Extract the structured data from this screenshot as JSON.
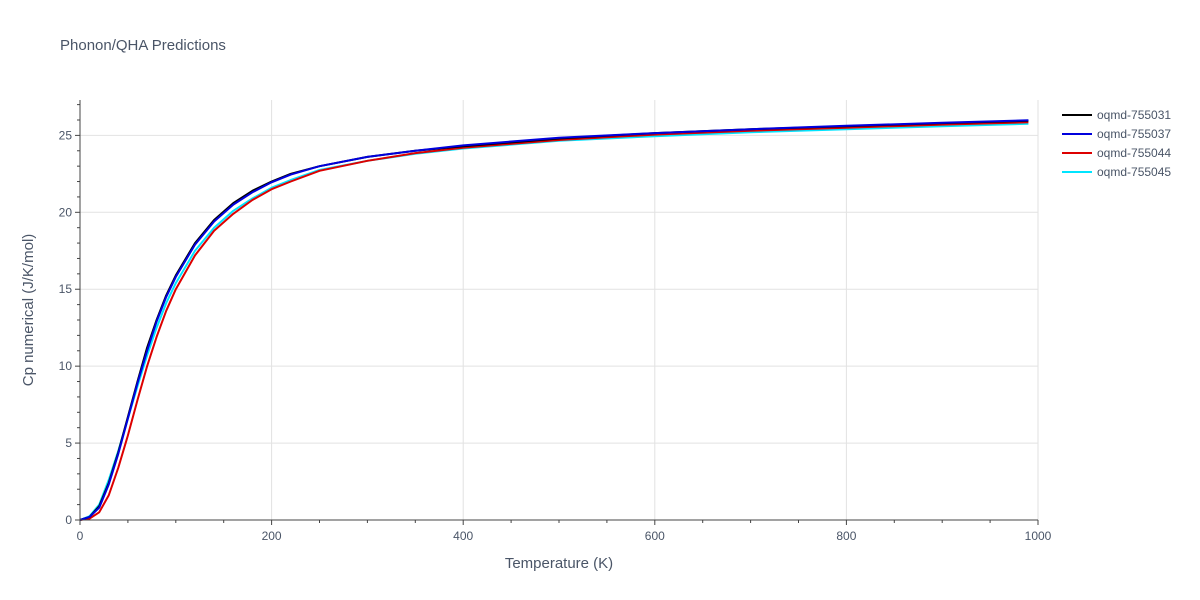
{
  "chart_data": {
    "type": "line",
    "title": "Phonon/QHA Predictions",
    "xlabel": "Temperature (K)",
    "ylabel": "Cp numerical (J/K/mol)",
    "xlim": [
      0,
      1000
    ],
    "ylim": [
      0,
      27.3
    ],
    "xticks": [
      0,
      200,
      400,
      600,
      800,
      1000
    ],
    "yticks": [
      0,
      5,
      10,
      15,
      20,
      25
    ],
    "grid": true,
    "legend_position": "top-right",
    "x": [
      0,
      10,
      20,
      30,
      40,
      50,
      60,
      70,
      80,
      90,
      100,
      120,
      140,
      160,
      180,
      200,
      220,
      250,
      300,
      350,
      400,
      500,
      600,
      700,
      800,
      900,
      990
    ],
    "series": [
      {
        "name": "oqmd-755031",
        "color": "#000000",
        "values": [
          0,
          0.2,
          0.9,
          2.4,
          4.4,
          6.7,
          9.0,
          11.2,
          13.0,
          14.6,
          15.9,
          18.0,
          19.5,
          20.6,
          21.4,
          22.0,
          22.5,
          23.0,
          23.6,
          24.0,
          24.3,
          24.8,
          25.15,
          25.4,
          25.6,
          25.8,
          25.95
        ]
      },
      {
        "name": "oqmd-755037",
        "color": "#0000dd",
        "values": [
          0,
          0.2,
          0.8,
          2.3,
          4.3,
          6.6,
          8.9,
          11.0,
          12.9,
          14.5,
          15.8,
          17.9,
          19.4,
          20.5,
          21.3,
          21.95,
          22.45,
          23.0,
          23.6,
          24.0,
          24.35,
          24.85,
          25.15,
          25.4,
          25.62,
          25.82,
          25.98
        ]
      },
      {
        "name": "oqmd-755044",
        "color": "#dd0000",
        "values": [
          0,
          0.1,
          0.5,
          1.6,
          3.4,
          5.5,
          7.8,
          10.0,
          11.9,
          13.6,
          15.0,
          17.2,
          18.8,
          19.9,
          20.8,
          21.5,
          22.0,
          22.7,
          23.35,
          23.85,
          24.2,
          24.7,
          25.05,
          25.3,
          25.5,
          25.7,
          25.85
        ]
      },
      {
        "name": "oqmd-755045",
        "color": "#00e5ff",
        "values": [
          0,
          0.25,
          1.0,
          2.6,
          4.5,
          6.6,
          8.7,
          10.7,
          12.5,
          14.1,
          15.4,
          17.5,
          19.0,
          20.1,
          20.9,
          21.6,
          22.1,
          22.75,
          23.35,
          23.8,
          24.15,
          24.65,
          24.95,
          25.2,
          25.4,
          25.6,
          25.75
        ]
      }
    ]
  }
}
